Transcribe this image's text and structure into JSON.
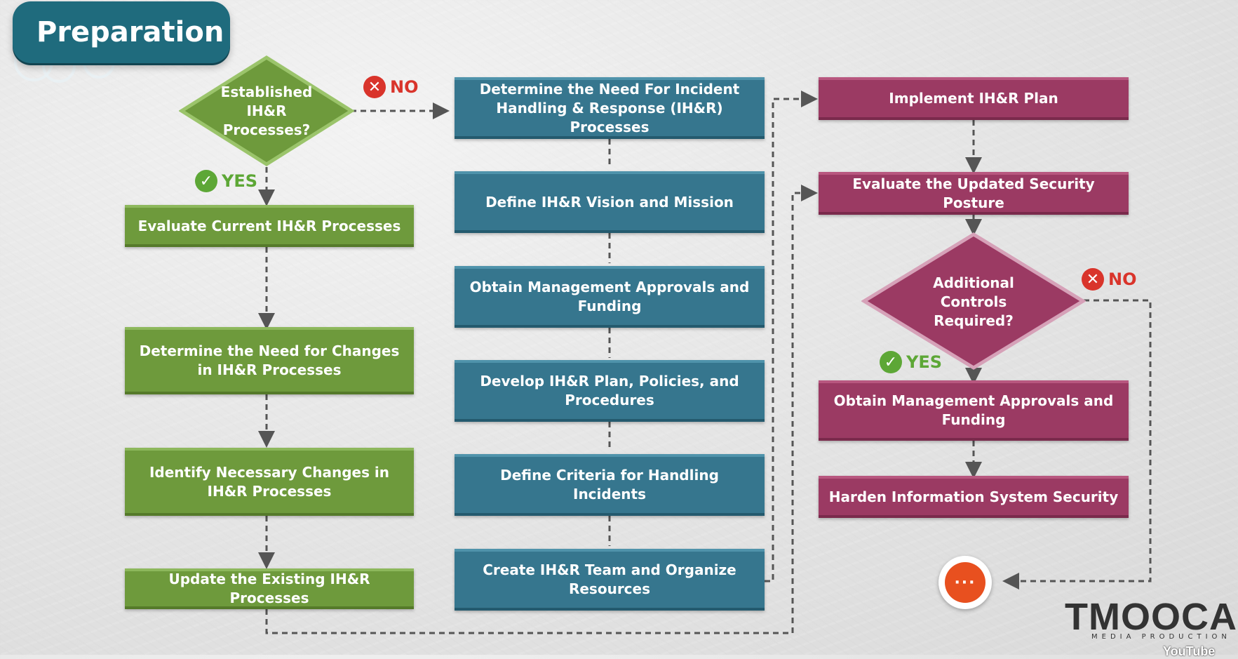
{
  "title": "Preparation",
  "decision1": {
    "text": "Established IH&R Processes?",
    "no_label": "NO",
    "yes_label": "YES"
  },
  "left_column": [
    "Evaluate Current IH&R Processes",
    "Determine the Need for Changes in IH&R Processes",
    "Identify Necessary Changes in IH&R Processes",
    "Update the Existing IH&R Processes"
  ],
  "middle_column": [
    "Determine the Need For Incident Handling & Response (IH&R) Processes",
    "Define IH&R Vision and Mission",
    "Obtain Management Approvals and Funding",
    "Develop IH&R Plan, Policies, and Procedures",
    "Define Criteria for Handling Incidents",
    "Create IH&R Team and Organize  Resources"
  ],
  "right_column": {
    "implement": "Implement IH&R Plan",
    "evaluate": "Evaluate the Updated Security Posture",
    "decision2": {
      "text": "Additional Controls Required?",
      "no_label": "NO",
      "yes_label": "YES"
    },
    "approvals": "Obtain Management Approvals and Funding",
    "harden": "Harden Information System Security"
  },
  "next_button": "···",
  "logo": {
    "brand": "TMOOCA",
    "tagline": "MEDIA PRODUCTION",
    "watermark": "YouTube"
  },
  "colors": {
    "green": "#6e9a3c",
    "blue": "#36768e",
    "magenta": "#9b3a63",
    "no": "#d9342b",
    "yes": "#5da736",
    "badge": "#1f6b7d"
  }
}
